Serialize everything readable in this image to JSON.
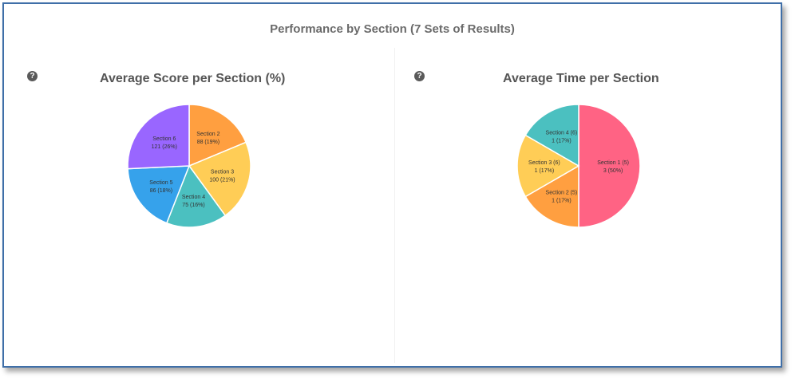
{
  "header": {
    "title": "Performance by Section (7 Sets of Results)"
  },
  "help_icon": "?",
  "chart_data": [
    {
      "type": "pie",
      "title": "Average Score per Section (%)",
      "slices": [
        {
          "label": "Section 2",
          "value": 88,
          "value_text": "88  (19%)",
          "color": "#ff9f40"
        },
        {
          "label": "Section 3",
          "value": 100,
          "value_text": "100  (21%)",
          "color": "#ffcd56"
        },
        {
          "label": "Section 4",
          "value": 75,
          "value_text": "75  (16%)",
          "color": "#4bc0c0"
        },
        {
          "label": "Section 5",
          "value": 86,
          "value_text": "86  (18%)",
          "color": "#36a2eb"
        },
        {
          "label": "Section 6",
          "value": 121,
          "value_text": "121  (26%)",
          "color": "#9966ff"
        }
      ]
    },
    {
      "type": "pie",
      "title": "Average Time per Section",
      "slices": [
        {
          "label": "Section 1 (5)",
          "value": 3,
          "value_text": "3  (50%)",
          "color": "#ff6384"
        },
        {
          "label": "Section 2 (5)",
          "value": 1,
          "value_text": "1  (17%)",
          "color": "#ff9f40"
        },
        {
          "label": "Section 3 (6)",
          "value": 1,
          "value_text": "1  (17%)",
          "color": "#ffcd56"
        },
        {
          "label": "Section 4 (6)",
          "value": 1,
          "value_text": "1  (17%)",
          "color": "#4bc0c0"
        }
      ]
    }
  ]
}
